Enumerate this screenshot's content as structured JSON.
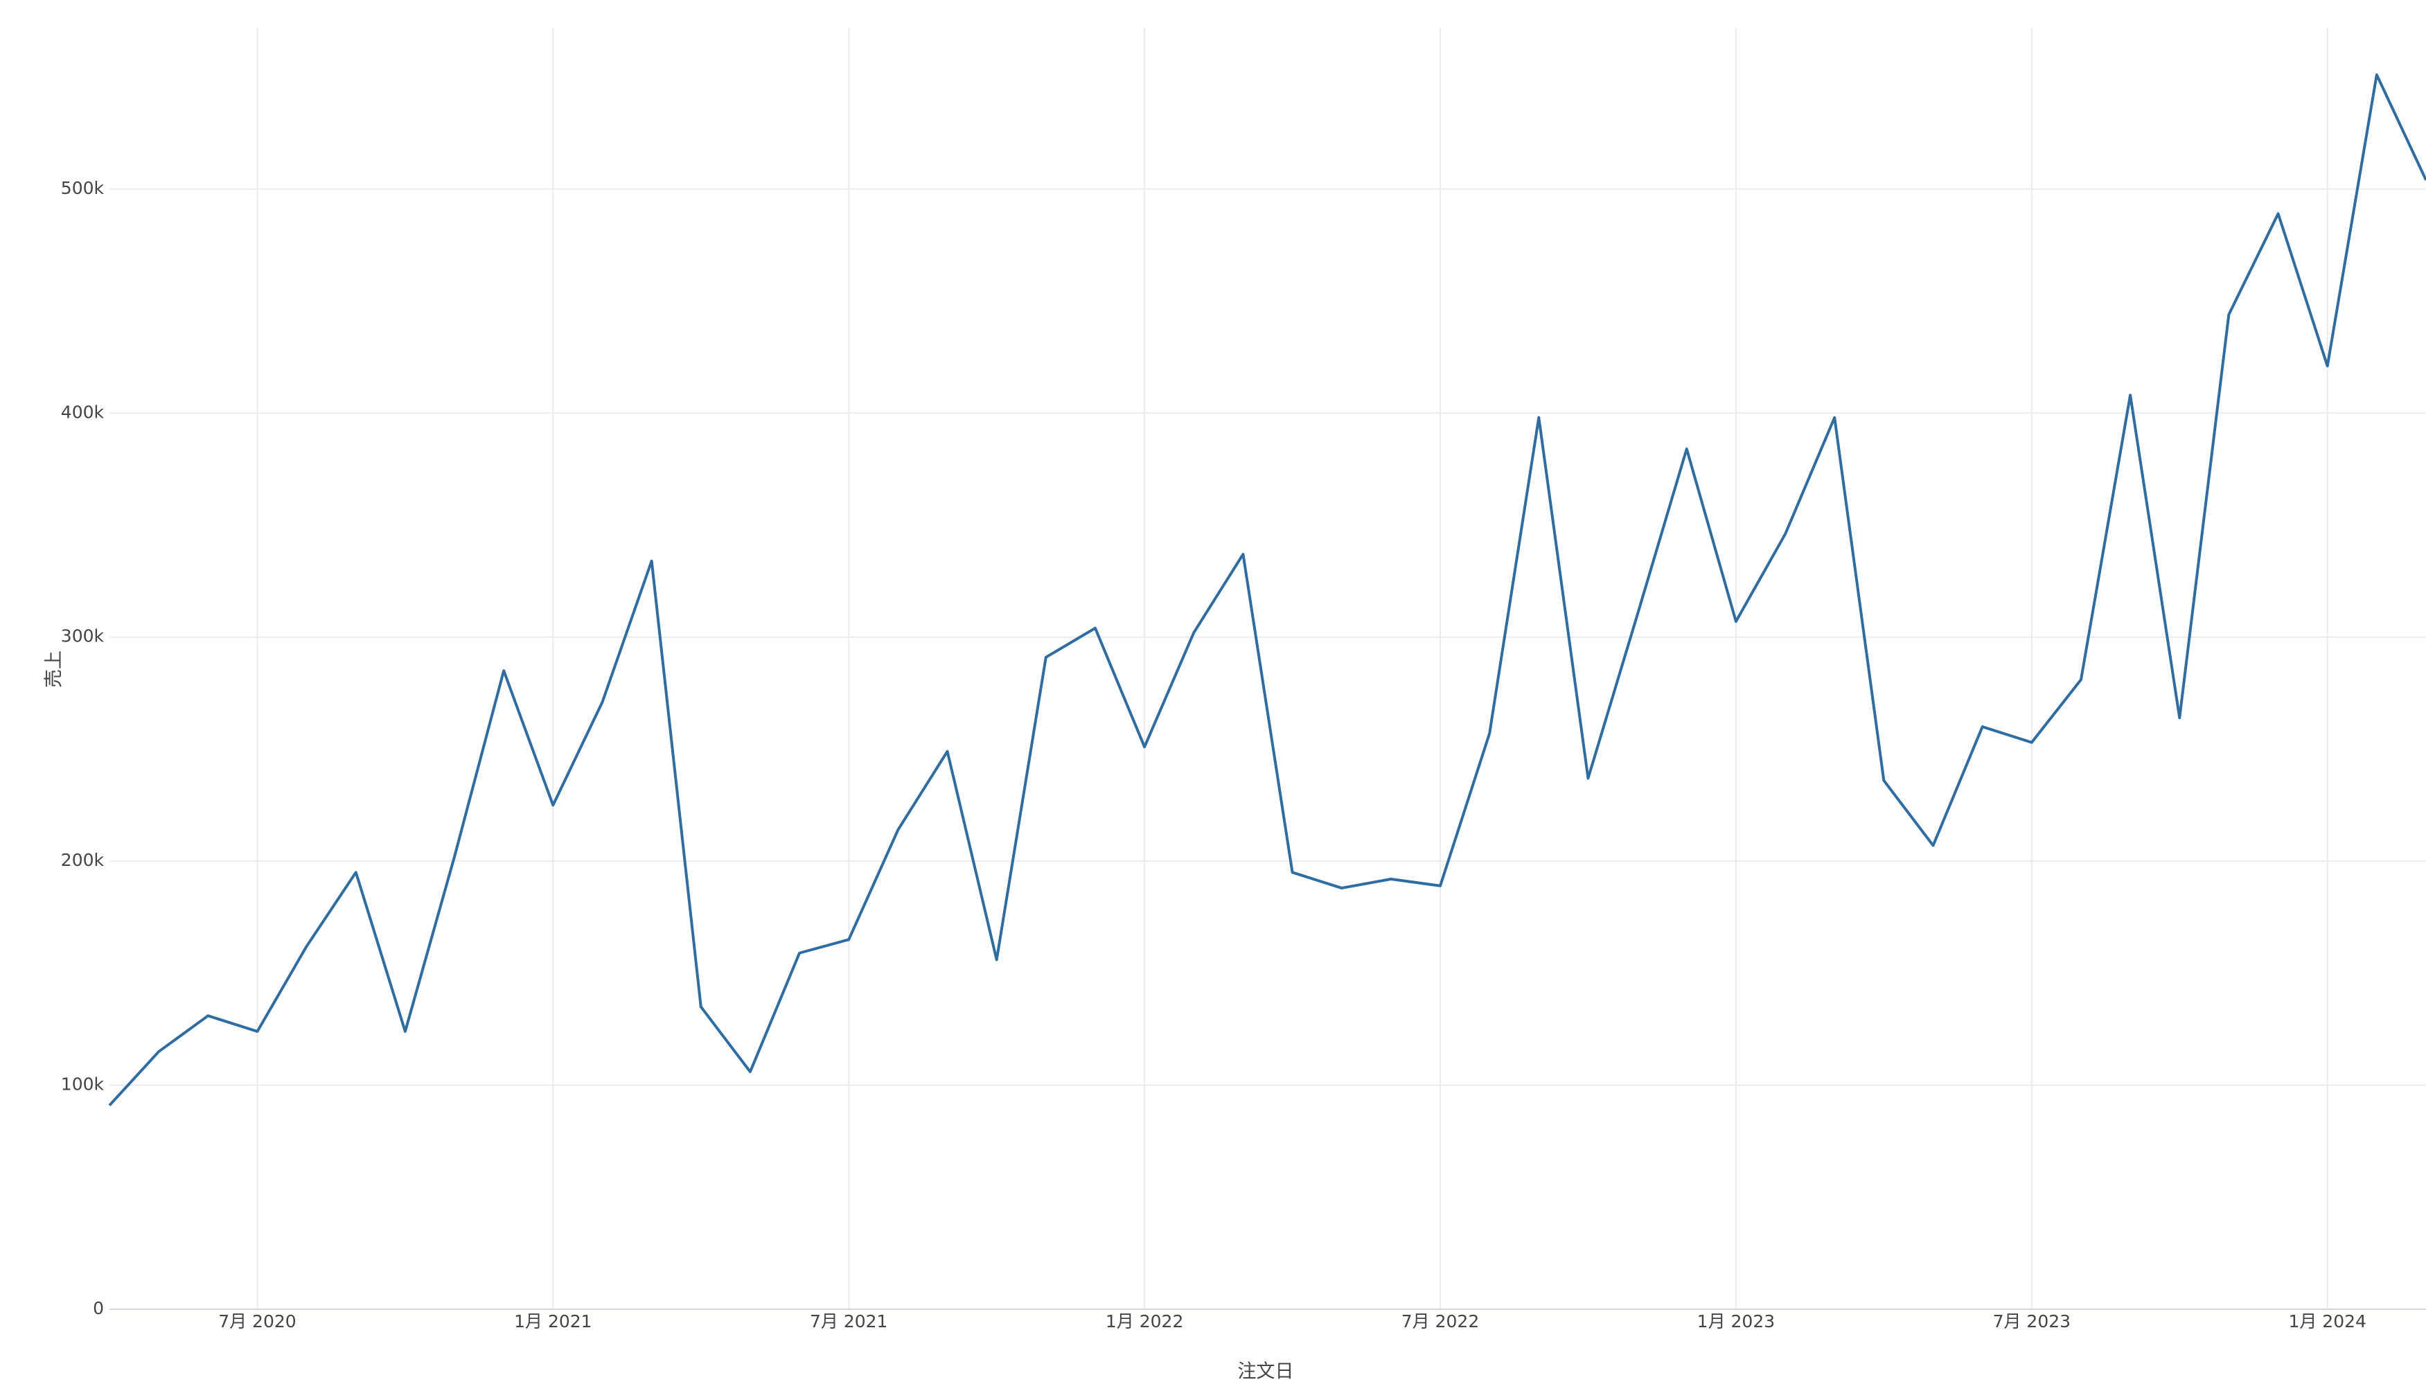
{
  "chart_data": {
    "type": "line",
    "x_label": "注文日",
    "y_label": "売上",
    "x": [
      "2020-04",
      "2020-05",
      "2020-06",
      "2020-07",
      "2020-08",
      "2020-09",
      "2020-10",
      "2020-11",
      "2020-12",
      "2021-01",
      "2021-02",
      "2021-03",
      "2021-04",
      "2021-05",
      "2021-06",
      "2021-07",
      "2021-08",
      "2021-09",
      "2021-10",
      "2021-11",
      "2021-12",
      "2022-01",
      "2022-02",
      "2022-03",
      "2022-04",
      "2022-05",
      "2022-06",
      "2022-07",
      "2022-08",
      "2022-09",
      "2022-10",
      "2022-11",
      "2022-12",
      "2023-01",
      "2023-02",
      "2023-03",
      "2023-04",
      "2023-05",
      "2023-06",
      "2023-07",
      "2023-08",
      "2023-09",
      "2023-10",
      "2023-11",
      "2023-12",
      "2024-01",
      "2024-02",
      "2024-03"
    ],
    "series": [
      {
        "name": "売上",
        "color": "#2e6da4",
        "values": [
          91000,
          115000,
          131000,
          124000,
          162000,
          195000,
          124000,
          202000,
          285000,
          225000,
          271000,
          334000,
          135000,
          106000,
          159000,
          165000,
          214000,
          249000,
          156000,
          291000,
          304000,
          251000,
          302000,
          337000,
          195000,
          188000,
          192000,
          189000,
          257000,
          398000,
          237000,
          310000,
          384000,
          307000,
          346000,
          398000,
          236000,
          207000,
          260000,
          253000,
          281000,
          408000,
          264000,
          444000,
          489000,
          421000,
          551000,
          504000
        ]
      }
    ],
    "xlim": [
      "2020-04",
      "2024-03"
    ],
    "xticks": [
      {
        "value": "2020-07",
        "label": "7月 2020"
      },
      {
        "value": "2021-01",
        "label": "1月 2021"
      },
      {
        "value": "2021-07",
        "label": "7月 2021"
      },
      {
        "value": "2022-01",
        "label": "1月 2022"
      },
      {
        "value": "2022-07",
        "label": "7月 2022"
      },
      {
        "value": "2023-01",
        "label": "1月 2023"
      },
      {
        "value": "2023-07",
        "label": "7月 2023"
      },
      {
        "value": "2024-01",
        "label": "1月 2024"
      }
    ],
    "ylim": [
      0,
      572000
    ],
    "yticks": [
      0,
      {
        "value": 100000,
        "label": "100k"
      },
      {
        "value": 200000,
        "label": "200k"
      },
      {
        "value": 300000,
        "label": "300k"
      },
      {
        "value": 400000,
        "label": "400k"
      },
      {
        "value": 500000,
        "label": "500k"
      }
    ],
    "grid": true
  }
}
